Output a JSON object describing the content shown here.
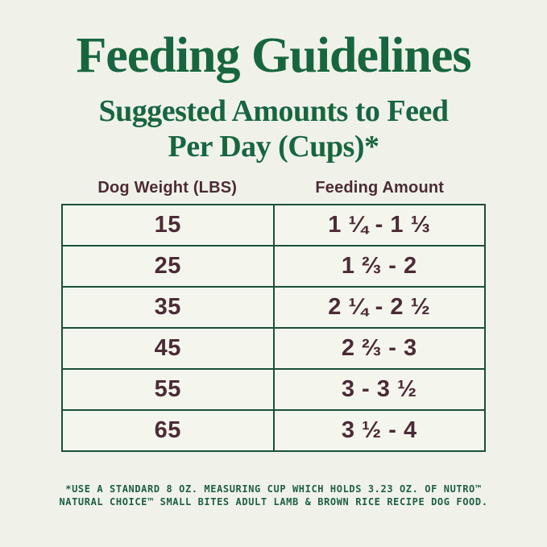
{
  "page": {
    "title": "Feeding Guidelines",
    "subtitle_line1": "Suggested Amounts to Feed",
    "subtitle_line2": "Per Day (Cups)*"
  },
  "table": {
    "columns": [
      "Dog Weight (LBS)",
      "Feeding Amount"
    ],
    "rows": [
      {
        "weight": "15",
        "amount": "1 ¼ - 1 ⅓"
      },
      {
        "weight": "25",
        "amount": "1 ⅔ - 2"
      },
      {
        "weight": "35",
        "amount": "2 ¼ - 2 ½"
      },
      {
        "weight": "45",
        "amount": "2 ⅔ - 3"
      },
      {
        "weight": "55",
        "amount": "3 - 3 ½"
      },
      {
        "weight": "65",
        "amount": "3 ½ - 4"
      }
    ]
  },
  "footnote": {
    "line1": "*USE A STANDARD 8 OZ. MEASURING CUP WHICH HOLDS 3.23 OZ. OF NUTRO™",
    "line2": "NATURAL CHOICE™ SMALL BITES ADULT LAMB & BROWN RICE RECIPE DOG FOOD."
  },
  "colors": {
    "background": "#f0f2e9",
    "heading_green": "#17663f",
    "table_border_green": "#1a5038",
    "cell_background": "#f4f6ee",
    "text_brown": "#4c2b35",
    "footnote_green": "#1d5f44"
  },
  "chart_data": {
    "type": "table",
    "title": "Feeding Guidelines",
    "subtitle": "Suggested Amounts to Feed Per Day (Cups)*",
    "columns": [
      "Dog Weight (LBS)",
      "Feeding Amount"
    ],
    "rows": [
      [
        "15",
        "1 ¼ - 1 ⅓"
      ],
      [
        "25",
        "1 ⅔ - 2"
      ],
      [
        "35",
        "2 ¼ - 2 ½"
      ],
      [
        "45",
        "2 ⅔ - 3"
      ],
      [
        "55",
        "3 - 3 ½"
      ],
      [
        "65",
        "3 ½ - 4"
      ]
    ],
    "weights_lbs": [
      15,
      25,
      35,
      45,
      55,
      65
    ],
    "feeding_cups_min": [
      1.25,
      1.667,
      2.25,
      2.667,
      3,
      3.5
    ],
    "feeding_cups_max": [
      1.333,
      2,
      2.5,
      3,
      3.5,
      4
    ],
    "footnote": "*USE A STANDARD 8 OZ. MEASURING CUP WHICH HOLDS 3.23 OZ. OF NUTRO™ NATURAL CHOICE™ SMALL BITES ADULT LAMB & BROWN RICE RECIPE DOG FOOD."
  }
}
